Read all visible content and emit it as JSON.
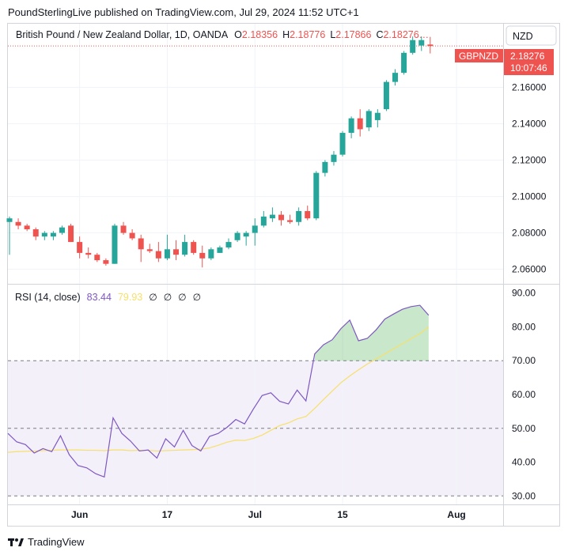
{
  "header": {
    "published": "PoundSterlingLive published on TradingView.com, Jul 29, 2024 11:52 UTC+1"
  },
  "legend": {
    "symbol": "British Pound / New Zealand Dollar, 1D, OANDA",
    "o_label": "O",
    "o_value": "2.18356",
    "h_label": "H",
    "h_value": "2.18776",
    "l_label": "L",
    "l_value": "2.17866",
    "c_label": "C",
    "c_value": "2.18276…"
  },
  "currency_button": "NZD",
  "price_tag": {
    "symbol": "GBPNZD",
    "price": "2.18276",
    "countdown": "10:07:46"
  },
  "rsi_legend": {
    "title": "RSI (14, close)",
    "rsi": "83.44",
    "ma": "79.93",
    "na": [
      "∅",
      "∅",
      "∅",
      "∅"
    ]
  },
  "footer": {
    "brand": "TradingView"
  },
  "colors": {
    "up": "#26a69a",
    "down": "#ef5350",
    "rsi": "#7e57c2",
    "rsi_ma": "#f7e06a",
    "band_fill": "#7e57c2",
    "overbought_fill": "#4caf50",
    "grid": "#f0f3fa",
    "text": "#131722"
  },
  "chart_data": [
    {
      "type": "candlestick",
      "title": "British Pound / New Zealand Dollar, 1D, OANDA",
      "ylim": [
        2.052,
        2.195
      ],
      "y_ticks": [
        "2.06000",
        "2.08000",
        "2.10000",
        "2.12000",
        "2.14000",
        "2.16000"
      ],
      "x_ticks": [
        "Jun",
        "17",
        "Jul",
        "15",
        "Aug"
      ],
      "candles": [
        {
          "o": 2.086,
          "h": 2.089,
          "l": 2.068,
          "c": 2.088
        },
        {
          "o": 2.086,
          "h": 2.088,
          "l": 2.082,
          "c": 2.084
        },
        {
          "o": 2.084,
          "h": 2.085,
          "l": 2.081,
          "c": 2.082
        },
        {
          "o": 2.082,
          "h": 2.083,
          "l": 2.076,
          "c": 2.078
        },
        {
          "o": 2.078,
          "h": 2.081,
          "l": 2.076,
          "c": 2.08
        },
        {
          "o": 2.078,
          "h": 2.081,
          "l": 2.076,
          "c": 2.08
        },
        {
          "o": 2.08,
          "h": 2.084,
          "l": 2.079,
          "c": 2.083
        },
        {
          "o": 2.084,
          "h": 2.085,
          "l": 2.075,
          "c": 2.075
        },
        {
          "o": 2.075,
          "h": 2.078,
          "l": 2.066,
          "c": 2.069
        },
        {
          "o": 2.069,
          "h": 2.072,
          "l": 2.066,
          "c": 2.068
        },
        {
          "o": 2.068,
          "h": 2.069,
          "l": 2.064,
          "c": 2.065
        },
        {
          "o": 2.065,
          "h": 2.066,
          "l": 2.062,
          "c": 2.063
        },
        {
          "o": 2.063,
          "h": 2.085,
          "l": 2.063,
          "c": 2.084
        },
        {
          "o": 2.084,
          "h": 2.086,
          "l": 2.079,
          "c": 2.08
        },
        {
          "o": 2.08,
          "h": 2.082,
          "l": 2.076,
          "c": 2.077
        },
        {
          "o": 2.077,
          "h": 2.079,
          "l": 2.064,
          "c": 2.071
        },
        {
          "o": 2.071,
          "h": 2.074,
          "l": 2.069,
          "c": 2.07
        },
        {
          "o": 2.07,
          "h": 2.075,
          "l": 2.064,
          "c": 2.066
        },
        {
          "o": 2.066,
          "h": 2.079,
          "l": 2.065,
          "c": 2.071
        },
        {
          "o": 2.071,
          "h": 2.076,
          "l": 2.065,
          "c": 2.068
        },
        {
          "o": 2.068,
          "h": 2.079,
          "l": 2.067,
          "c": 2.075
        },
        {
          "o": 2.075,
          "h": 2.076,
          "l": 2.068,
          "c": 2.069
        },
        {
          "o": 2.069,
          "h": 2.073,
          "l": 2.061,
          "c": 2.066
        },
        {
          "o": 2.066,
          "h": 2.072,
          "l": 2.065,
          "c": 2.071
        },
        {
          "o": 2.069,
          "h": 2.073,
          "l": 2.069,
          "c": 2.072
        },
        {
          "o": 2.072,
          "h": 2.077,
          "l": 2.071,
          "c": 2.075
        },
        {
          "o": 2.076,
          "h": 2.081,
          "l": 2.075,
          "c": 2.08
        },
        {
          "o": 2.078,
          "h": 2.081,
          "l": 2.073,
          "c": 2.08
        },
        {
          "o": 2.08,
          "h": 2.088,
          "l": 2.073,
          "c": 2.084
        },
        {
          "o": 2.084,
          "h": 2.092,
          "l": 2.083,
          "c": 2.089
        },
        {
          "o": 2.088,
          "h": 2.094,
          "l": 2.086,
          "c": 2.09
        },
        {
          "o": 2.09,
          "h": 2.092,
          "l": 2.084,
          "c": 2.087
        },
        {
          "o": 2.087,
          "h": 2.09,
          "l": 2.085,
          "c": 2.086
        },
        {
          "o": 2.086,
          "h": 2.094,
          "l": 2.084,
          "c": 2.092
        },
        {
          "o": 2.092,
          "h": 2.095,
          "l": 2.087,
          "c": 2.088
        },
        {
          "o": 2.088,
          "h": 2.114,
          "l": 2.087,
          "c": 2.113
        },
        {
          "o": 2.113,
          "h": 2.12,
          "l": 2.111,
          "c": 2.119
        },
        {
          "o": 2.119,
          "h": 2.125,
          "l": 2.117,
          "c": 2.123
        },
        {
          "o": 2.123,
          "h": 2.136,
          "l": 2.122,
          "c": 2.135
        },
        {
          "o": 2.135,
          "h": 2.144,
          "l": 2.132,
          "c": 2.143
        },
        {
          "o": 2.143,
          "h": 2.148,
          "l": 2.133,
          "c": 2.137
        },
        {
          "o": 2.138,
          "h": 2.148,
          "l": 2.136,
          "c": 2.147
        },
        {
          "o": 2.142,
          "h": 2.148,
          "l": 2.138,
          "c": 2.146
        },
        {
          "o": 2.148,
          "h": 2.164,
          "l": 2.147,
          "c": 2.163
        },
        {
          "o": 2.163,
          "h": 2.17,
          "l": 2.161,
          "c": 2.168
        },
        {
          "o": 2.168,
          "h": 2.18,
          "l": 2.167,
          "c": 2.179
        },
        {
          "o": 2.179,
          "h": 2.188,
          "l": 2.178,
          "c": 2.186
        },
        {
          "o": 2.183,
          "h": 2.188,
          "l": 2.18,
          "c": 2.186
        },
        {
          "o": 2.18356,
          "h": 2.18776,
          "l": 2.17866,
          "c": 2.18276
        }
      ]
    },
    {
      "type": "line",
      "title": "RSI (14, close)",
      "ylim": [
        27.5,
        92.5
      ],
      "y_ticks": [
        "30.00",
        "40.00",
        "50.00",
        "60.00",
        "70.00",
        "80.00",
        "90.00"
      ],
      "bands": {
        "upper": 70,
        "middle": 50,
        "lower": 30
      },
      "series": [
        {
          "name": "RSI",
          "values": [
            48.5,
            46,
            45.2,
            42.7,
            44,
            43.1,
            47.8,
            42.2,
            39,
            38.3,
            36.6,
            35.6,
            53.1,
            48.5,
            46.2,
            43.3,
            43.6,
            41.2,
            46.9,
            44.5,
            49.4,
            44.9,
            43.3,
            47.6,
            48.5,
            50.3,
            52.6,
            51.3,
            55.7,
            59.7,
            60.5,
            58,
            57.2,
            61.3,
            58.1,
            72,
            74.7,
            76.2,
            79.5,
            82,
            75.9,
            76.6,
            79.1,
            82.3,
            83.8,
            85.2,
            86,
            86.4,
            83.44
          ]
        },
        {
          "name": "MA",
          "values": [
            42.9,
            43.1,
            43.2,
            43.3,
            43.4,
            43.5,
            43.6,
            43.6,
            43.6,
            43.5,
            43.5,
            43.4,
            43.6,
            43.6,
            43.4,
            43.5,
            43.5,
            43.3,
            43.4,
            43.5,
            43.6,
            43.7,
            43.8,
            44.2,
            45,
            45.9,
            46.5,
            46.4,
            47,
            48,
            49.4,
            50.8,
            51.6,
            52.8,
            53.5,
            55.9,
            58.5,
            61,
            63.5,
            65.5,
            67.3,
            69,
            70.5,
            72,
            73.5,
            75,
            76.5,
            78,
            79.93
          ]
        }
      ]
    }
  ]
}
